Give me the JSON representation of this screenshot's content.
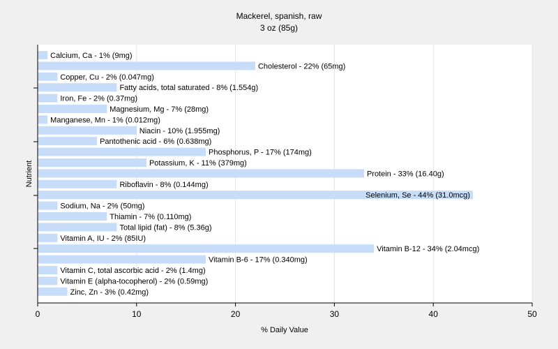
{
  "chart_data": {
    "type": "bar",
    "orientation": "horizontal",
    "title": "Mackerel, spanish, raw",
    "subtitle": "3 oz (85g)",
    "xlabel": "% Daily Value",
    "ylabel": "Nutrient",
    "xlim": [
      0,
      50
    ],
    "xticks": [
      0,
      10,
      20,
      30,
      40,
      50
    ],
    "grid": "vertical",
    "bar_color": "#c6dcf8",
    "background": "#f0f0f0",
    "plot_background": "#ffffff",
    "categories": [
      "Calcium, Ca",
      "Cholesterol",
      "Copper, Cu",
      "Fatty acids, total saturated",
      "Iron, Fe",
      "Magnesium, Mg",
      "Manganese, Mn",
      "Niacin",
      "Pantothenic acid",
      "Phosphorus, P",
      "Potassium, K",
      "Protein",
      "Riboflavin",
      "Selenium, Se",
      "Sodium, Na",
      "Thiamin",
      "Total lipid (fat)",
      "Vitamin A, IU",
      "Vitamin B-12",
      "Vitamin B-6",
      "Vitamin C, total ascorbic acid",
      "Vitamin E (alpha-tocopherol)",
      "Zinc, Zn"
    ],
    "values": [
      1,
      22,
      2,
      8,
      2,
      7,
      1,
      10,
      6,
      17,
      11,
      33,
      8,
      44,
      2,
      7,
      8,
      2,
      34,
      17,
      2,
      2,
      3
    ],
    "labels": [
      "Calcium, Ca - 1% (9mg)",
      "Cholesterol - 22% (65mg)",
      "Copper, Cu - 2% (0.047mg)",
      "Fatty acids, total saturated - 8% (1.554g)",
      "Iron, Fe - 2% (0.37mg)",
      "Magnesium, Mg - 7% (28mg)",
      "Manganese, Mn - 1% (0.012mg)",
      "Niacin - 10% (1.955mg)",
      "Pantothenic acid - 6% (0.638mg)",
      "Phosphorus, P - 17% (174mg)",
      "Potassium, K - 11% (379mg)",
      "Protein - 33% (16.40g)",
      "Riboflavin - 8% (0.144mg)",
      "Selenium, Se - 44% (31.0mcg)",
      "Sodium, Na - 2% (50mg)",
      "Thiamin - 7% (0.110mg)",
      "Total lipid (fat) - 8% (5.36g)",
      "Vitamin A, IU - 2% (85IU)",
      "Vitamin B-12 - 34% (2.04mcg)",
      "Vitamin B-6 - 17% (0.340mg)",
      "Vitamin C, total ascorbic acid - 2% (1.4mg)",
      "Vitamin E (alpha-tocopherol) - 2% (0.59mg)",
      "Zinc, Zn - 3% (0.42mg)"
    ]
  }
}
